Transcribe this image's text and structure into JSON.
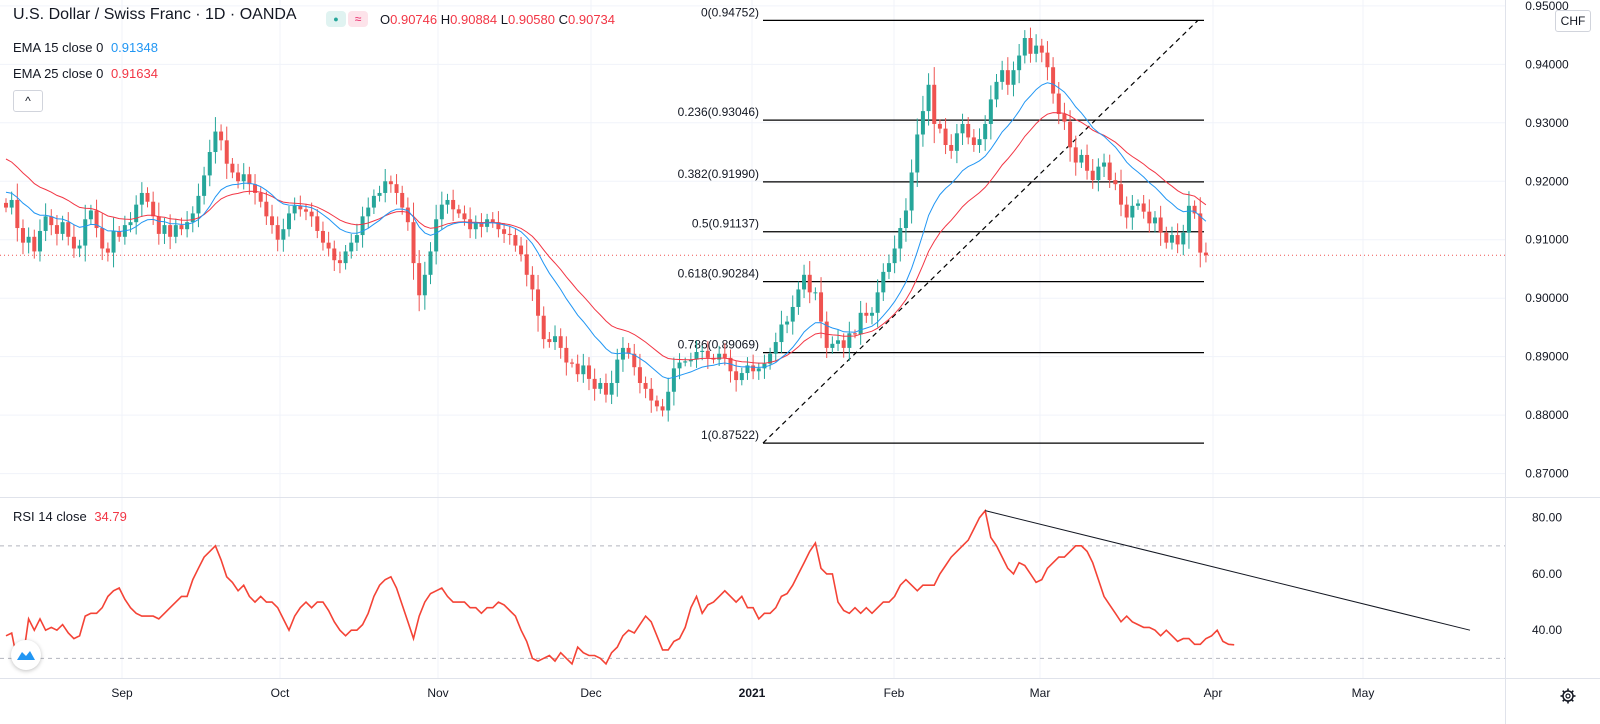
{
  "header": {
    "symbol": "U.S. Dollar / Swiss Franc · 1D · OANDA",
    "ohlc": [
      {
        "k": "O",
        "v": "0.90746"
      },
      {
        "k": "H",
        "v": "0.90884"
      },
      {
        "k": "L",
        "v": "0.90580"
      },
      {
        "k": "C",
        "v": "0.90734"
      }
    ],
    "currency_button": "CHF",
    "collapse_glyph": "^",
    "indicator_glyph": "≈",
    "dot_glyph": "●"
  },
  "indicators": {
    "ema15_label": "EMA 15 close 0",
    "ema15_value": "0.91348",
    "ema25_label": "EMA 25 close 0",
    "ema25_value": "0.91634",
    "rsi_label": "RSI 14 close",
    "rsi_value": "34.79"
  },
  "colors": {
    "up": "#26a69a",
    "down": "#ef5350",
    "ema15": "#2196f3",
    "ema25": "#f23645",
    "rsi": "#f44336",
    "grid": "#f0f3fa",
    "axis_text": "#131722"
  },
  "chart_data": [
    {
      "type": "candlestick",
      "title": "U.S. Dollar / Swiss Franc · 1D · OANDA",
      "ylim": [
        0.866,
        0.951
      ],
      "y_ticks": [
        "0.95000",
        "0.94000",
        "0.93000",
        "0.92000",
        "0.91000",
        "0.90000",
        "0.89000",
        "0.88000",
        "0.87000"
      ],
      "y_tick_values": [
        0.95,
        0.94,
        0.93,
        0.92,
        0.91,
        0.9,
        0.89,
        0.88,
        0.87
      ],
      "x_labels": [
        "Sep",
        "Oct",
        "Nov",
        "Dec",
        "2021",
        "Feb",
        "Mar",
        "Apr",
        "May"
      ],
      "last_price": 0.90734,
      "fibonacci": {
        "high": 0.94752,
        "low": 0.87522,
        "levels": [
          {
            "label": "0(0.94752)",
            "price": 0.94752
          },
          {
            "label": "0.236(0.93046)",
            "price": 0.93046
          },
          {
            "label": "0.382(0.91990)",
            "price": 0.9199
          },
          {
            "label": "0.5(0.91137)",
            "price": 0.91137
          },
          {
            "label": "0.618(0.90284)",
            "price": 0.90284
          },
          {
            "label": "0.786(0.89069)",
            "price": 0.89069
          },
          {
            "label": "1(0.87522)",
            "price": 0.87522
          }
        ]
      },
      "closes": [
        0.9155,
        0.9168,
        0.912,
        0.9095,
        0.9105,
        0.908,
        0.9115,
        0.914,
        0.9125,
        0.911,
        0.913,
        0.9105,
        0.9085,
        0.909,
        0.9135,
        0.915,
        0.912,
        0.9085,
        0.9078,
        0.9115,
        0.9105,
        0.9125,
        0.913,
        0.916,
        0.918,
        0.9165,
        0.914,
        0.911,
        0.9125,
        0.9105,
        0.9125,
        0.9118,
        0.913,
        0.9145,
        0.9175,
        0.921,
        0.925,
        0.9285,
        0.927,
        0.923,
        0.9215,
        0.92,
        0.9212,
        0.9195,
        0.918,
        0.9165,
        0.914,
        0.9125,
        0.91,
        0.9118,
        0.9145,
        0.9158,
        0.9152,
        0.9148,
        0.914,
        0.9115,
        0.9095,
        0.9085,
        0.9065,
        0.906,
        0.908,
        0.9095,
        0.9108,
        0.914,
        0.9155,
        0.9175,
        0.918,
        0.92,
        0.9195,
        0.918,
        0.9155,
        0.913,
        0.906,
        0.9005,
        0.904,
        0.908,
        0.9135,
        0.916,
        0.9168,
        0.9152,
        0.9145,
        0.9135,
        0.9118,
        0.913,
        0.9122,
        0.9135,
        0.913,
        0.9118,
        0.911,
        0.9108,
        0.909,
        0.9075,
        0.904,
        0.9015,
        0.897,
        0.893,
        0.8925,
        0.8935,
        0.8915,
        0.889,
        0.8888,
        0.887,
        0.8885,
        0.8862,
        0.8845,
        0.8855,
        0.8835,
        0.8855,
        0.8895,
        0.8915,
        0.8905,
        0.8882,
        0.8855,
        0.8845,
        0.8825,
        0.8815,
        0.8808,
        0.884,
        0.888,
        0.889,
        0.8892,
        0.8895,
        0.8908,
        0.891,
        0.8898,
        0.8895,
        0.8905,
        0.8898,
        0.8875,
        0.886,
        0.8872,
        0.8885,
        0.8875,
        0.888,
        0.8888,
        0.8905,
        0.8925,
        0.8955,
        0.896,
        0.8985,
        0.9015,
        0.904,
        0.901,
        0.901,
        0.896,
        0.8915,
        0.8922,
        0.8928,
        0.8915,
        0.894,
        0.8938,
        0.8975,
        0.897,
        0.8975,
        0.901,
        0.9045,
        0.906,
        0.9085,
        0.912,
        0.915,
        0.9215,
        0.928,
        0.932,
        0.9365,
        0.9298,
        0.929,
        0.9262,
        0.9252,
        0.9282,
        0.9298,
        0.9275,
        0.9262,
        0.9272,
        0.9298,
        0.934,
        0.937,
        0.939,
        0.9365,
        0.939,
        0.9415,
        0.9445,
        0.9418,
        0.9432,
        0.942,
        0.9395,
        0.935,
        0.9315,
        0.9302,
        0.9258,
        0.9232,
        0.9245,
        0.9218,
        0.9202,
        0.9225,
        0.9232,
        0.9202,
        0.9195,
        0.916,
        0.9138,
        0.9158,
        0.9162,
        0.9148,
        0.9128,
        0.9138,
        0.9112,
        0.9095,
        0.9108,
        0.9092,
        0.9112,
        0.9158,
        0.9145,
        0.9078,
        0.90734
      ]
    },
    {
      "type": "line",
      "title": "RSI 14 close",
      "ylim": [
        23,
        87
      ],
      "y_ticks": [
        "80.00",
        "60.00",
        "40.00"
      ],
      "y_tick_values": [
        80,
        60,
        40
      ],
      "bands": [
        70,
        30
      ],
      "last_value": 34.79,
      "trendline": [
        [
          82.5,
          82.5
        ],
        [
          40,
          40
        ]
      ],
      "values": [
        38,
        39,
        29,
        30,
        44,
        40,
        44,
        40,
        41,
        40,
        42,
        39,
        37,
        38,
        45,
        46,
        46,
        48,
        52,
        54,
        55,
        51,
        48,
        46,
        45,
        45,
        45,
        44,
        46,
        48,
        50,
        52,
        52,
        58,
        62,
        66,
        68,
        70,
        65,
        59,
        57,
        54,
        56,
        52,
        50,
        52,
        50,
        50,
        48,
        44,
        40,
        45,
        48,
        50,
        48,
        50,
        50,
        47,
        43,
        40,
        38,
        40,
        40,
        42,
        46,
        52,
        56,
        58,
        59,
        55,
        49,
        43,
        37,
        45,
        50,
        53,
        54,
        55,
        52,
        50,
        50,
        50,
        48,
        48,
        46,
        48,
        48,
        50,
        49,
        47,
        45,
        40,
        36,
        30,
        29,
        30,
        31,
        29,
        32,
        30,
        28,
        34,
        32,
        31,
        31,
        30,
        28,
        32,
        34,
        38,
        40,
        39,
        42,
        45,
        43,
        38,
        33,
        33,
        36,
        37,
        41,
        48,
        52,
        46,
        49,
        50,
        52,
        54,
        52,
        50,
        52,
        48,
        48,
        44,
        46,
        46,
        48,
        52,
        53,
        56,
        60,
        64,
        68,
        71,
        62,
        60,
        60,
        50,
        47,
        46,
        48,
        46,
        48,
        46,
        48,
        50,
        50,
        52,
        56,
        58,
        56,
        54,
        56,
        56,
        56,
        60,
        63,
        66,
        68,
        70,
        72,
        76,
        80,
        82.5,
        73,
        70,
        66,
        62,
        60,
        64,
        63,
        60,
        57,
        58,
        62,
        64,
        66,
        66,
        68,
        70,
        70,
        68,
        64,
        58,
        52,
        49,
        46,
        43,
        45,
        43,
        42,
        41,
        41,
        40,
        38,
        40,
        38,
        36,
        37,
        37,
        35,
        35,
        37,
        38,
        40,
        36,
        35,
        34.79
      ]
    }
  ]
}
